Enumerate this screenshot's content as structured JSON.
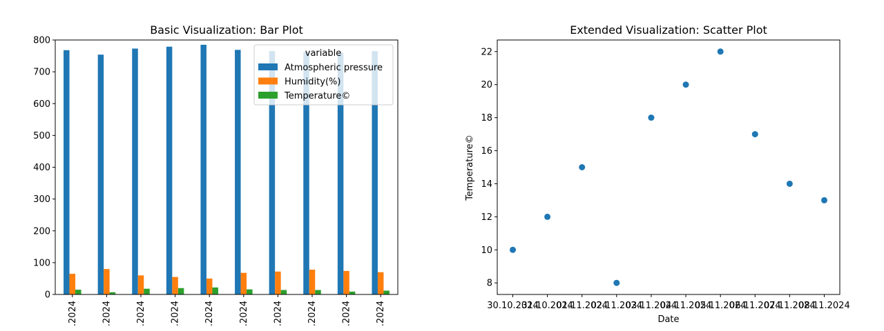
{
  "chart_data": [
    {
      "type": "bar",
      "title": "Basic Visualization: Bar Plot",
      "xlabel": "",
      "ylabel": "",
      "ylim": [
        0,
        800
      ],
      "yticks": [
        "0",
        "100",
        "200",
        "300",
        "400",
        "500",
        "600",
        "700",
        "800"
      ],
      "categories": [
        ".2024",
        ".2024",
        ".2024",
        ".2024",
        ".2024",
        ".2024",
        ".2024",
        ".2024",
        ".2024",
        ".2024"
      ],
      "legend": {
        "title": "variable",
        "placement": "top-right"
      },
      "series": [
        {
          "name": "Atmospheric pressure",
          "color": "#1f77b4",
          "values": [
            768,
            754,
            773,
            779,
            785,
            769,
            765,
            762,
            760,
            765
          ]
        },
        {
          "name": "Humidity(%)",
          "color": "#ff7f0e",
          "values": [
            65,
            80,
            60,
            55,
            50,
            68,
            72,
            78,
            74,
            70
          ]
        },
        {
          "name": "Temperature©",
          "color": "#2ca02c",
          "values": [
            15,
            7,
            18,
            20,
            22,
            16,
            14,
            14,
            9,
            12
          ]
        }
      ],
      "grid": false
    },
    {
      "type": "scatter",
      "title": "Extended Visualization: Scatter Plot",
      "xlabel": "Date",
      "ylabel": "Temperature©",
      "ylim": [
        7.3,
        22.7
      ],
      "yticks": [
        "8",
        "10",
        "12",
        "14",
        "16",
        "18",
        "20",
        "22"
      ],
      "x": [
        "30.10.2024",
        "31.10.2024",
        "01.11.2024",
        "02.11.2024",
        "03.11.2024",
        "04.11.2024",
        "05.11.2024",
        "06.11.2024",
        "07.11.2024",
        "08.11.2024"
      ],
      "y": [
        10,
        12,
        15,
        8,
        18,
        20,
        22,
        17,
        14,
        13
      ],
      "color": "#1f77b4",
      "grid": false
    }
  ]
}
